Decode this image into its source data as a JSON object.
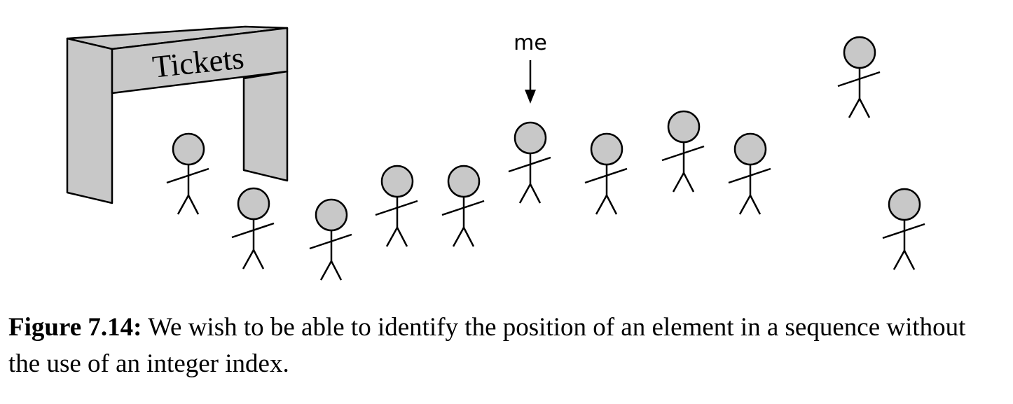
{
  "figure": {
    "gate_label": "Tickets",
    "pointer_label": "me",
    "person_fill": "#c8c8c8",
    "gate_fill": "#c8c8c8",
    "stroke_color": "#000000"
  },
  "caption": {
    "label": "Figure 7.14:",
    "text": "We wish to be able to identify the position of an element in a sequence without the use of an integer index."
  }
}
